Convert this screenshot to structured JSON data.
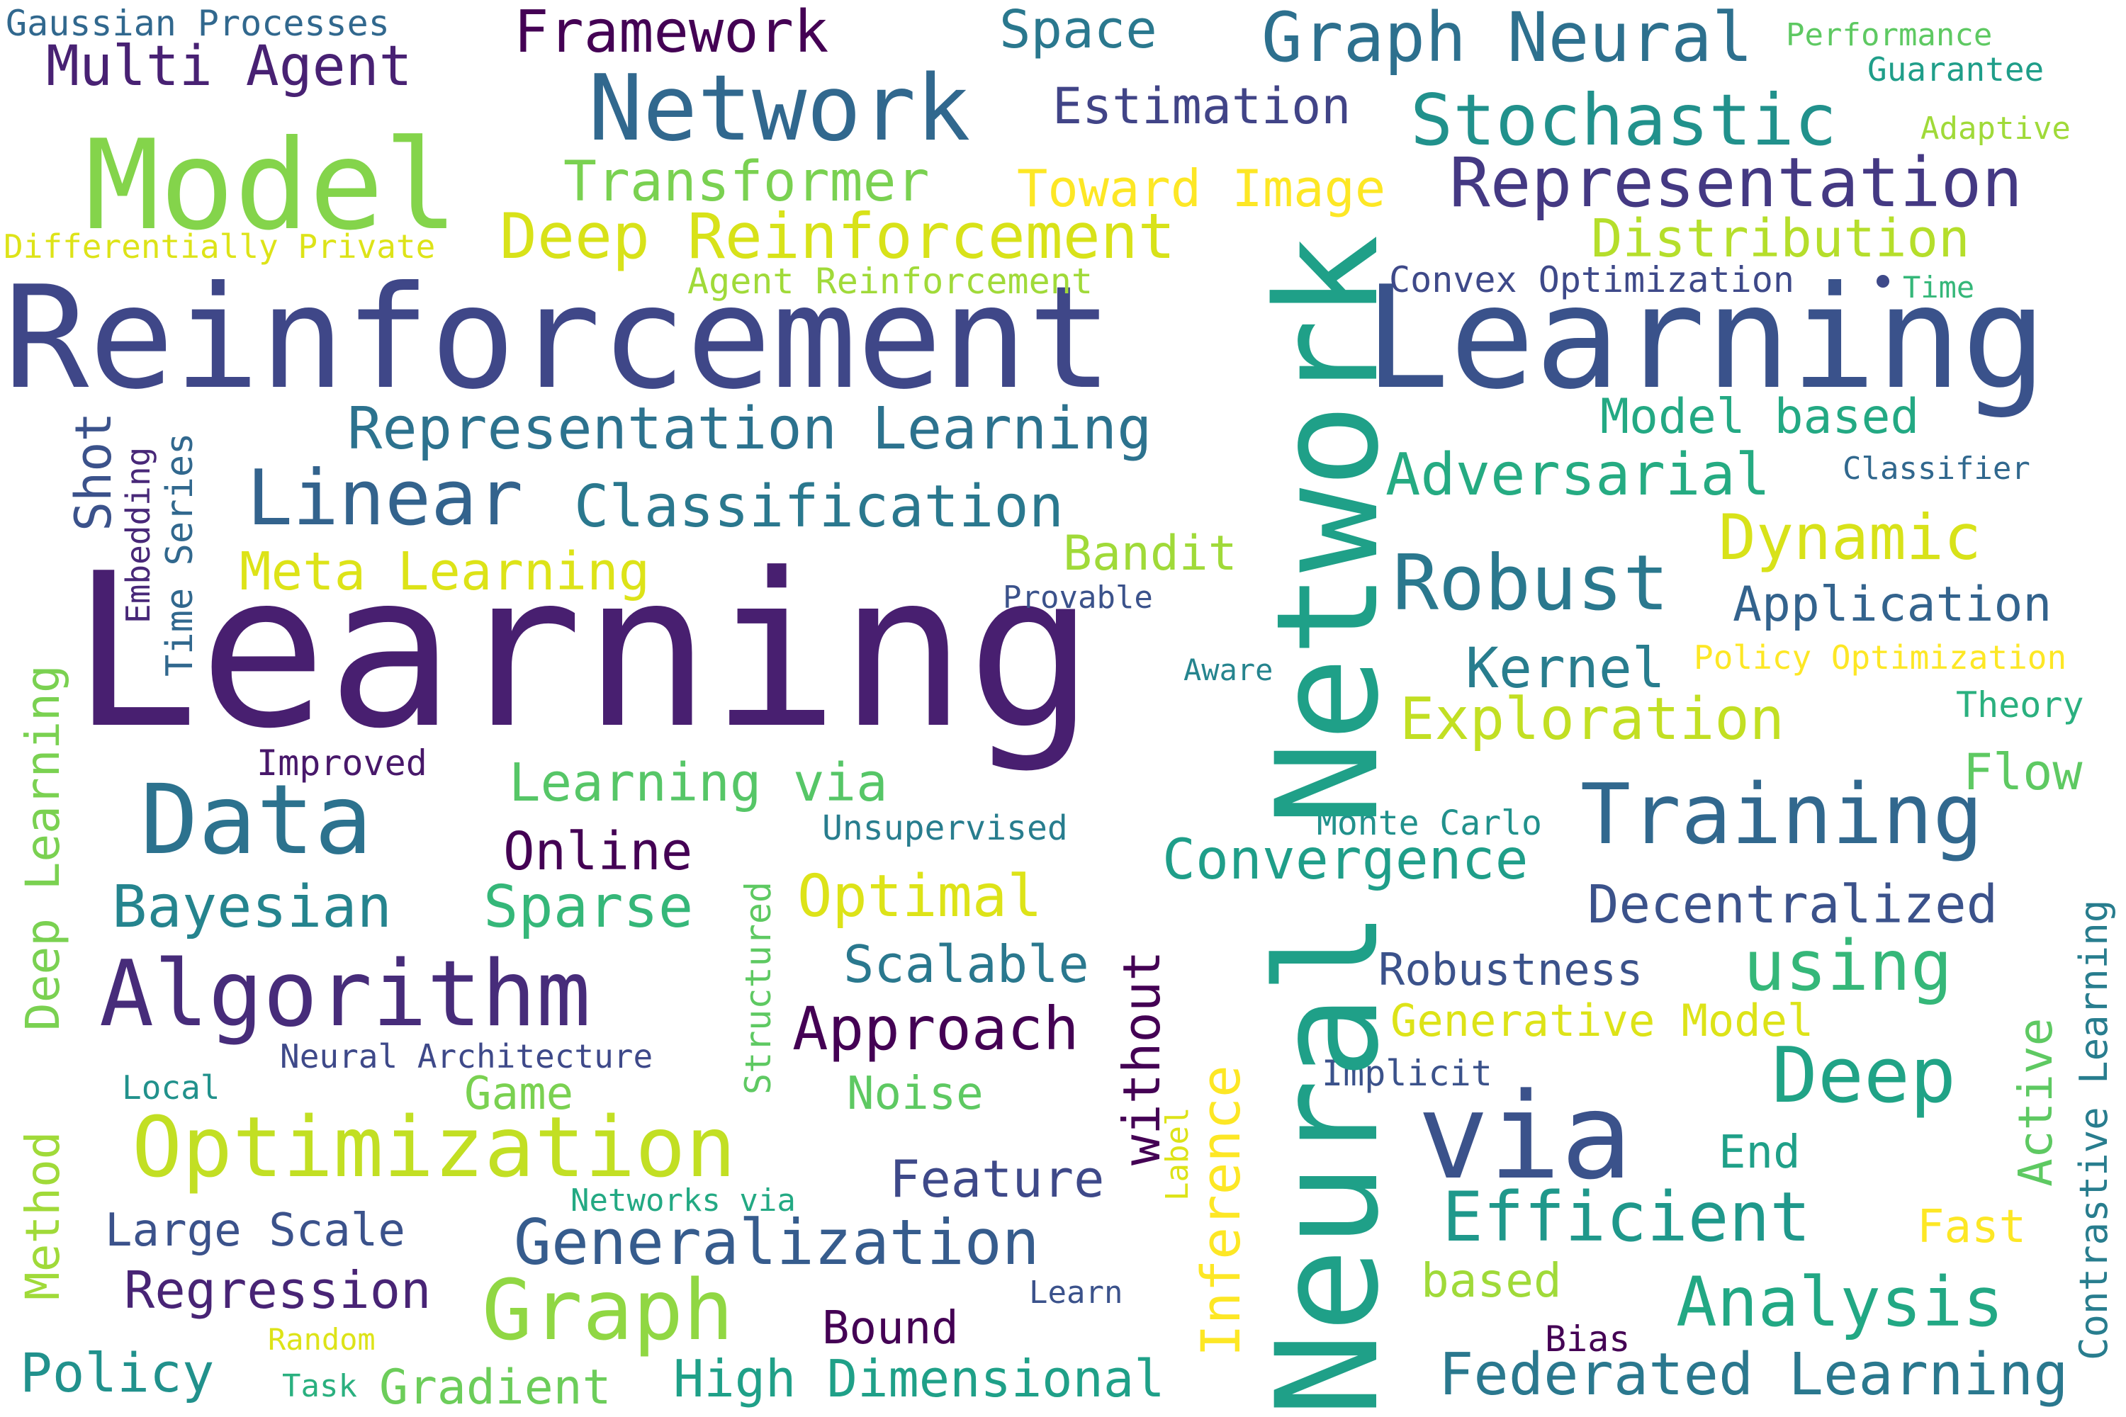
{
  "words": [
    "Reinforcement",
    "Learning",
    "Learning",
    "Neural Network",
    "Model",
    "Network",
    "Data",
    "Algorithm",
    "via",
    "Optimization",
    "Graph",
    "Training",
    "Representation",
    "Robust",
    "Stochastic",
    "Graph Neural",
    "Deep Reinforcement",
    "Linear",
    "Deep",
    "Representation Learning",
    "Classification",
    "Framework",
    "Multi Agent",
    "Exploration",
    "Bayesian",
    "Transformer",
    "Generalization",
    "Dynamic",
    "Adversarial",
    "Sparse",
    "Optimal",
    "using",
    "Analysis",
    "Efficient",
    "Convergence",
    "Approach",
    "Toward Image",
    "Estimation",
    "Space",
    "Distribution",
    "Meta Learning",
    "Learning via",
    "Federated Learning",
    "Decentralized",
    "Online",
    "Kernel",
    "Application",
    "Scalable",
    "Feature",
    "Regression",
    "High Dimensional",
    "Policy",
    "Model based",
    "Large Scale",
    "Gradient",
    "Bandit",
    "Game",
    "Noise",
    "Robustness",
    "Generative Model",
    "Bound",
    "based",
    "Flow",
    "Fast",
    "End",
    "Unsupervised",
    "Convex Optimization",
    "Agent Reinforcement",
    "Gaussian Processes",
    "Differentially Private",
    "Performance",
    "Guarantee",
    "Adaptive",
    "Time",
    "Classifier",
    "Policy Optimization",
    "Theory",
    "Provable",
    "Aware",
    "Improved",
    "Monte Carlo",
    "Neural Architecture",
    "Local",
    "Implicit",
    "Networks via",
    "Learn",
    "Random",
    "Task",
    "Bias",
    "Shot",
    "Embedding",
    "Time Series",
    "Deep Learning",
    "Method",
    "Structured",
    "without",
    "Label",
    "Inference",
    "Active",
    "Contrastive Learning"
  ]
}
